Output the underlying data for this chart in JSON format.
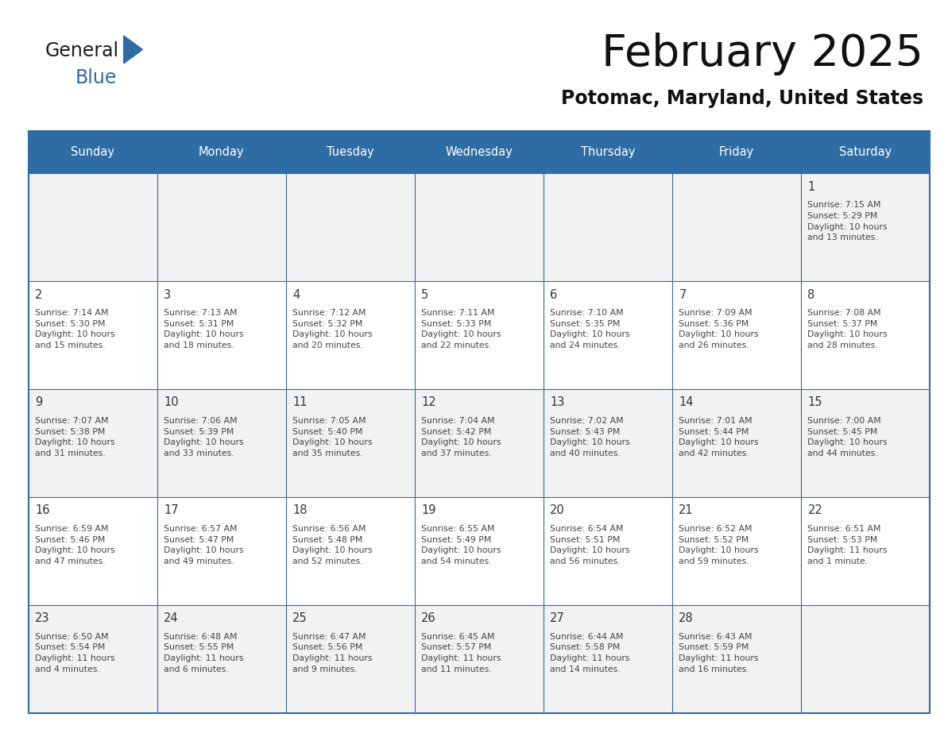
{
  "title": "February 2025",
  "subtitle": "Potomac, Maryland, United States",
  "header_bg": "#2E6DA4",
  "header_text_color": "#FFFFFF",
  "cell_bg_odd": "#F2F2F2",
  "cell_bg_even": "#FFFFFF",
  "border_color": "#2E6DA4",
  "day_number_color": "#333333",
  "info_text_color": "#444444",
  "days_of_week": [
    "Sunday",
    "Monday",
    "Tuesday",
    "Wednesday",
    "Thursday",
    "Friday",
    "Saturday"
  ],
  "weeks": [
    [
      {
        "day": null,
        "info": null
      },
      {
        "day": null,
        "info": null
      },
      {
        "day": null,
        "info": null
      },
      {
        "day": null,
        "info": null
      },
      {
        "day": null,
        "info": null
      },
      {
        "day": null,
        "info": null
      },
      {
        "day": "1",
        "info": "Sunrise: 7:15 AM\nSunset: 5:29 PM\nDaylight: 10 hours\nand 13 minutes."
      }
    ],
    [
      {
        "day": "2",
        "info": "Sunrise: 7:14 AM\nSunset: 5:30 PM\nDaylight: 10 hours\nand 15 minutes."
      },
      {
        "day": "3",
        "info": "Sunrise: 7:13 AM\nSunset: 5:31 PM\nDaylight: 10 hours\nand 18 minutes."
      },
      {
        "day": "4",
        "info": "Sunrise: 7:12 AM\nSunset: 5:32 PM\nDaylight: 10 hours\nand 20 minutes."
      },
      {
        "day": "5",
        "info": "Sunrise: 7:11 AM\nSunset: 5:33 PM\nDaylight: 10 hours\nand 22 minutes."
      },
      {
        "day": "6",
        "info": "Sunrise: 7:10 AM\nSunset: 5:35 PM\nDaylight: 10 hours\nand 24 minutes."
      },
      {
        "day": "7",
        "info": "Sunrise: 7:09 AM\nSunset: 5:36 PM\nDaylight: 10 hours\nand 26 minutes."
      },
      {
        "day": "8",
        "info": "Sunrise: 7:08 AM\nSunset: 5:37 PM\nDaylight: 10 hours\nand 28 minutes."
      }
    ],
    [
      {
        "day": "9",
        "info": "Sunrise: 7:07 AM\nSunset: 5:38 PM\nDaylight: 10 hours\nand 31 minutes."
      },
      {
        "day": "10",
        "info": "Sunrise: 7:06 AM\nSunset: 5:39 PM\nDaylight: 10 hours\nand 33 minutes."
      },
      {
        "day": "11",
        "info": "Sunrise: 7:05 AM\nSunset: 5:40 PM\nDaylight: 10 hours\nand 35 minutes."
      },
      {
        "day": "12",
        "info": "Sunrise: 7:04 AM\nSunset: 5:42 PM\nDaylight: 10 hours\nand 37 minutes."
      },
      {
        "day": "13",
        "info": "Sunrise: 7:02 AM\nSunset: 5:43 PM\nDaylight: 10 hours\nand 40 minutes."
      },
      {
        "day": "14",
        "info": "Sunrise: 7:01 AM\nSunset: 5:44 PM\nDaylight: 10 hours\nand 42 minutes."
      },
      {
        "day": "15",
        "info": "Sunrise: 7:00 AM\nSunset: 5:45 PM\nDaylight: 10 hours\nand 44 minutes."
      }
    ],
    [
      {
        "day": "16",
        "info": "Sunrise: 6:59 AM\nSunset: 5:46 PM\nDaylight: 10 hours\nand 47 minutes."
      },
      {
        "day": "17",
        "info": "Sunrise: 6:57 AM\nSunset: 5:47 PM\nDaylight: 10 hours\nand 49 minutes."
      },
      {
        "day": "18",
        "info": "Sunrise: 6:56 AM\nSunset: 5:48 PM\nDaylight: 10 hours\nand 52 minutes."
      },
      {
        "day": "19",
        "info": "Sunrise: 6:55 AM\nSunset: 5:49 PM\nDaylight: 10 hours\nand 54 minutes."
      },
      {
        "day": "20",
        "info": "Sunrise: 6:54 AM\nSunset: 5:51 PM\nDaylight: 10 hours\nand 56 minutes."
      },
      {
        "day": "21",
        "info": "Sunrise: 6:52 AM\nSunset: 5:52 PM\nDaylight: 10 hours\nand 59 minutes."
      },
      {
        "day": "22",
        "info": "Sunrise: 6:51 AM\nSunset: 5:53 PM\nDaylight: 11 hours\nand 1 minute."
      }
    ],
    [
      {
        "day": "23",
        "info": "Sunrise: 6:50 AM\nSunset: 5:54 PM\nDaylight: 11 hours\nand 4 minutes."
      },
      {
        "day": "24",
        "info": "Sunrise: 6:48 AM\nSunset: 5:55 PM\nDaylight: 11 hours\nand 6 minutes."
      },
      {
        "day": "25",
        "info": "Sunrise: 6:47 AM\nSunset: 5:56 PM\nDaylight: 11 hours\nand 9 minutes."
      },
      {
        "day": "26",
        "info": "Sunrise: 6:45 AM\nSunset: 5:57 PM\nDaylight: 11 hours\nand 11 minutes."
      },
      {
        "day": "27",
        "info": "Sunrise: 6:44 AM\nSunset: 5:58 PM\nDaylight: 11 hours\nand 14 minutes."
      },
      {
        "day": "28",
        "info": "Sunrise: 6:43 AM\nSunset: 5:59 PM\nDaylight: 11 hours\nand 16 minutes."
      },
      {
        "day": null,
        "info": null
      }
    ]
  ],
  "logo_text1": "General",
  "logo_text2": "Blue",
  "logo_text1_color": "#1a1a1a",
  "logo_text2_color": "#2E6DA4",
  "logo_triangle_color": "#2E6DA4",
  "fig_width": 11.88,
  "fig_height": 9.18,
  "dpi": 100
}
